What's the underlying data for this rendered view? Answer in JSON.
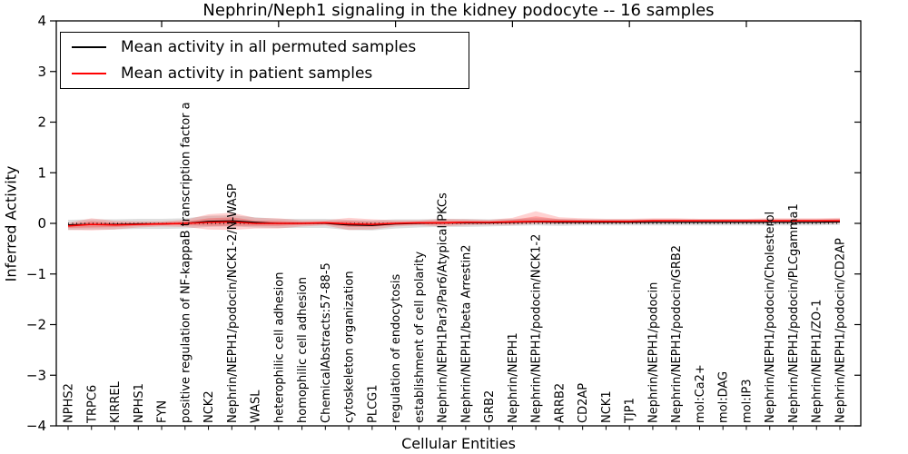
{
  "figure": {
    "title": "Nephrin/Neph1 signaling in the kidney podocyte -- 16 samples",
    "xlabel": "Cellular Entities",
    "ylabel": "Inferred Activity"
  },
  "legend": {
    "items": [
      {
        "label": "Mean activity in all permuted samples",
        "color": "#000000"
      },
      {
        "label": "Mean activity in patient samples",
        "color": "#ff0000"
      }
    ]
  },
  "chart_data": {
    "type": "line",
    "title": "Nephrin/Neph1 signaling in the kidney podocyte -- 16 samples",
    "xlabel": "Cellular Entities",
    "ylabel": "Inferred Activity",
    "ylim": [
      -4,
      4
    ],
    "yticks": [
      -4,
      -3,
      -2,
      -1,
      0,
      1,
      2,
      3,
      4
    ],
    "xticks_values": [
      5,
      10,
      15,
      20,
      25,
      30,
      35
    ],
    "grid": false,
    "legend_position": "upper-left",
    "zero_line": {
      "y": 0,
      "style": "dotted",
      "color": "#000000"
    },
    "categories": [
      "NPHS2",
      "TRPC6",
      "KIRREL",
      "NPHS1",
      "FYN",
      "positive regulation of NF-kappaB transcription factor a",
      "NCK2",
      "Nephrin/NEPH1/podocin/NCK1-2/N-WASP",
      "WASL",
      "heterophilic cell adhesion",
      "homophilic cell adhesion",
      "ChemicalAbstracts:57-88-5",
      "cytoskeleton organization",
      "PLCG1",
      "regulation of endocytosis",
      "establishment of cell polarity",
      "Nephrin/NEPH1Par3/Par6/Atypical PKCs",
      "Nephrin/NEPH1/beta Arrestin2",
      "GRB2",
      "Nephrin/NEPH1",
      "Nephrin/NEPH1/podocin/NCK1-2",
      "ARRB2",
      "CD2AP",
      "NCK1",
      "TJP1",
      "Nephrin/NEPH1/podocin",
      "Nephrin/NEPH1/podocin/GRB2",
      "mol:Ca2+",
      "mol:DAG",
      "mol:IP3",
      "Nephrin/NEPH1/podocin/Cholesterol",
      "Nephrin/NEPH1/podocin/PLCgamma1",
      "Nephrin/NEPH1/ZO-1",
      "Nephrin/NEPH1/podocin/CD2AP"
    ],
    "series": [
      {
        "name": "Mean activity in all permuted samples",
        "color": "#000000",
        "line_width": 1.3,
        "values": [
          -0.03,
          -0.02,
          -0.02,
          -0.01,
          -0.01,
          0.0,
          0.04,
          0.05,
          0.02,
          0.0,
          0.0,
          0.0,
          -0.03,
          -0.04,
          -0.01,
          0.0,
          0.01,
          0.01,
          0.01,
          0.02,
          0.03,
          0.02,
          0.02,
          0.02,
          0.02,
          0.02,
          0.02,
          0.02,
          0.02,
          0.02,
          0.02,
          0.02,
          0.02,
          0.03
        ]
      },
      {
        "name": "Mean activity in patient samples",
        "color": "#ff0000",
        "line_width": 1.6,
        "values": [
          -0.05,
          -0.02,
          -0.03,
          -0.02,
          -0.01,
          0.0,
          0.02,
          0.03,
          0.0,
          0.0,
          0.0,
          0.01,
          -0.01,
          -0.02,
          0.0,
          0.01,
          0.01,
          0.02,
          0.02,
          0.03,
          0.04,
          0.04,
          0.04,
          0.04,
          0.04,
          0.05,
          0.05,
          0.05,
          0.05,
          0.05,
          0.05,
          0.05,
          0.05,
          0.05
        ]
      }
    ],
    "bands": [
      {
        "name": "permuted-confidence-band",
        "center_series": 0,
        "color": "#000000",
        "alpha": 0.13,
        "inner_scale": 0,
        "upper": [
          0.1,
          0.1,
          0.1,
          0.1,
          0.1,
          0.1,
          0.11,
          0.11,
          0.1,
          0.09,
          0.09,
          0.09,
          0.1,
          0.1,
          0.09,
          0.08,
          0.08,
          0.08,
          0.07,
          0.07,
          0.07,
          0.07,
          0.06,
          0.06,
          0.06,
          0.06,
          0.06,
          0.06,
          0.06,
          0.06,
          0.06,
          0.06,
          0.06,
          0.06
        ],
        "lower": [
          0.1,
          0.1,
          0.1,
          0.1,
          0.1,
          0.1,
          0.11,
          0.11,
          0.1,
          0.09,
          0.09,
          0.09,
          0.1,
          0.1,
          0.09,
          0.08,
          0.08,
          0.08,
          0.07,
          0.07,
          0.07,
          0.07,
          0.06,
          0.06,
          0.06,
          0.06,
          0.06,
          0.06,
          0.06,
          0.06,
          0.06,
          0.06,
          0.06,
          0.06
        ]
      },
      {
        "name": "patient-confidence-band",
        "center_series": 1,
        "color": "#ff0000",
        "alpha": 0.18,
        "inner_scale": 0.5,
        "upper": [
          0.06,
          0.12,
          0.08,
          0.06,
          0.05,
          0.07,
          0.16,
          0.18,
          0.11,
          0.1,
          0.06,
          0.05,
          0.12,
          0.1,
          0.06,
          0.05,
          0.08,
          0.06,
          0.05,
          0.08,
          0.2,
          0.08,
          0.06,
          0.05,
          0.05,
          0.05,
          0.05,
          0.04,
          0.04,
          0.04,
          0.05,
          0.05,
          0.05,
          0.06
        ],
        "lower": [
          0.08,
          0.12,
          0.09,
          0.06,
          0.05,
          0.07,
          0.14,
          0.16,
          0.1,
          0.1,
          0.06,
          0.05,
          0.12,
          0.1,
          0.06,
          0.05,
          0.07,
          0.06,
          0.05,
          0.06,
          0.05,
          0.05,
          0.05,
          0.04,
          0.04,
          0.04,
          0.04,
          0.04,
          0.04,
          0.04,
          0.04,
          0.04,
          0.04,
          0.05
        ]
      }
    ]
  }
}
